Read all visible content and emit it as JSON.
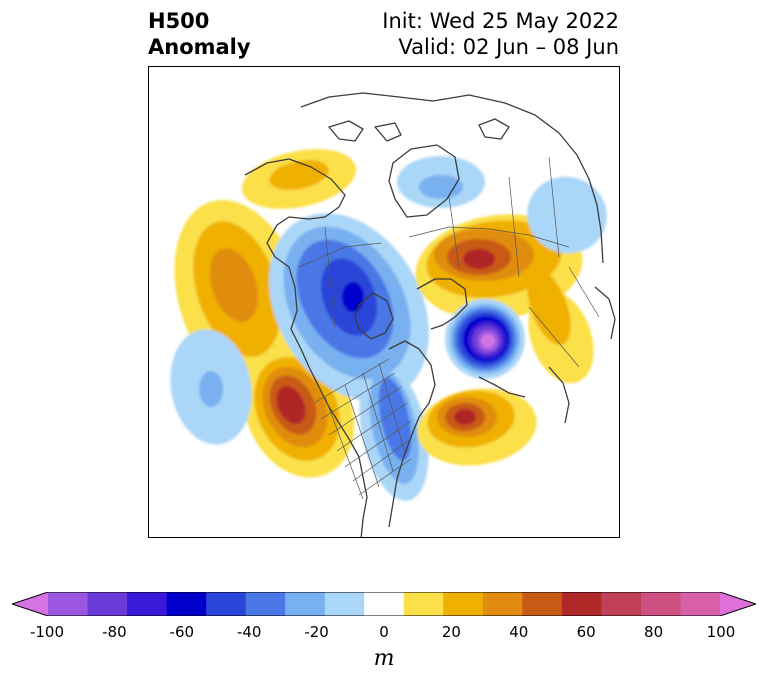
{
  "title": {
    "left_line1": "H500",
    "left_line2": "Anomaly",
    "right_line1": "Init: Wed 25 May 2022",
    "right_line2": "Valid: 02 Jun – 08 Jun"
  },
  "colorbar": {
    "units": "m",
    "ticks": [
      "-100",
      "-80",
      "-60",
      "-40",
      "-20",
      "0",
      "20",
      "40",
      "60",
      "80",
      "100"
    ],
    "levels": [
      -100,
      -90,
      -80,
      -70,
      -60,
      -50,
      -40,
      -30,
      -20,
      -10,
      10,
      20,
      30,
      40,
      50,
      60,
      70,
      80,
      90,
      100
    ],
    "colors": [
      "#d474e4",
      "#9b57e0",
      "#6a3bd6",
      "#3a1ad8",
      "#0000cc",
      "#2a45d8",
      "#4a78e6",
      "#78b0f0",
      "#aad6f8",
      "#ffffff",
      "#fbe04a",
      "#f0b000",
      "#e08c10",
      "#c85a18",
      "#b02828",
      "#c04058",
      "#cc5080",
      "#d860a8",
      "#e070d8"
    ],
    "extend": "both"
  },
  "chart_data": {
    "type": "heatmap",
    "title": "H500 Anomaly",
    "variable": "500 hPa geopotential height anomaly",
    "units": "m",
    "init": "Wed 25 May 2022",
    "valid": "02 Jun – 08 Jun",
    "color_range": [
      -100,
      100
    ],
    "contour_interval": 10
  }
}
